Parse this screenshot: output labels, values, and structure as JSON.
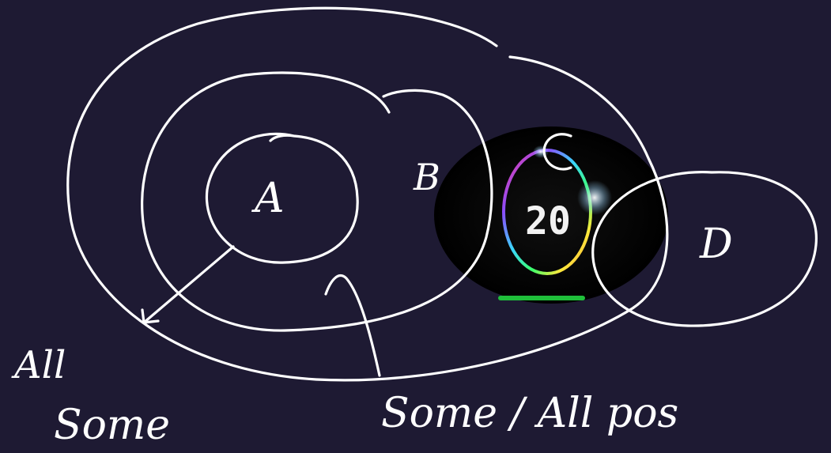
{
  "diagram": {
    "labels": {
      "a": "A",
      "b": "B",
      "c": "C",
      "d": "D"
    },
    "annotations": {
      "all_some_line1": "All",
      "all_some_line2": "Some",
      "some_all_pos": "Some / All pos"
    },
    "timer": {
      "value": "20",
      "ring_colors": [
        "#ff3b8a",
        "#8a4dff",
        "#3bd6ff",
        "#3bff6a",
        "#ffe83b",
        "#ff8a3b"
      ]
    },
    "colors": {
      "background": "#1e1a33",
      "ink": "#ffffff"
    }
  }
}
